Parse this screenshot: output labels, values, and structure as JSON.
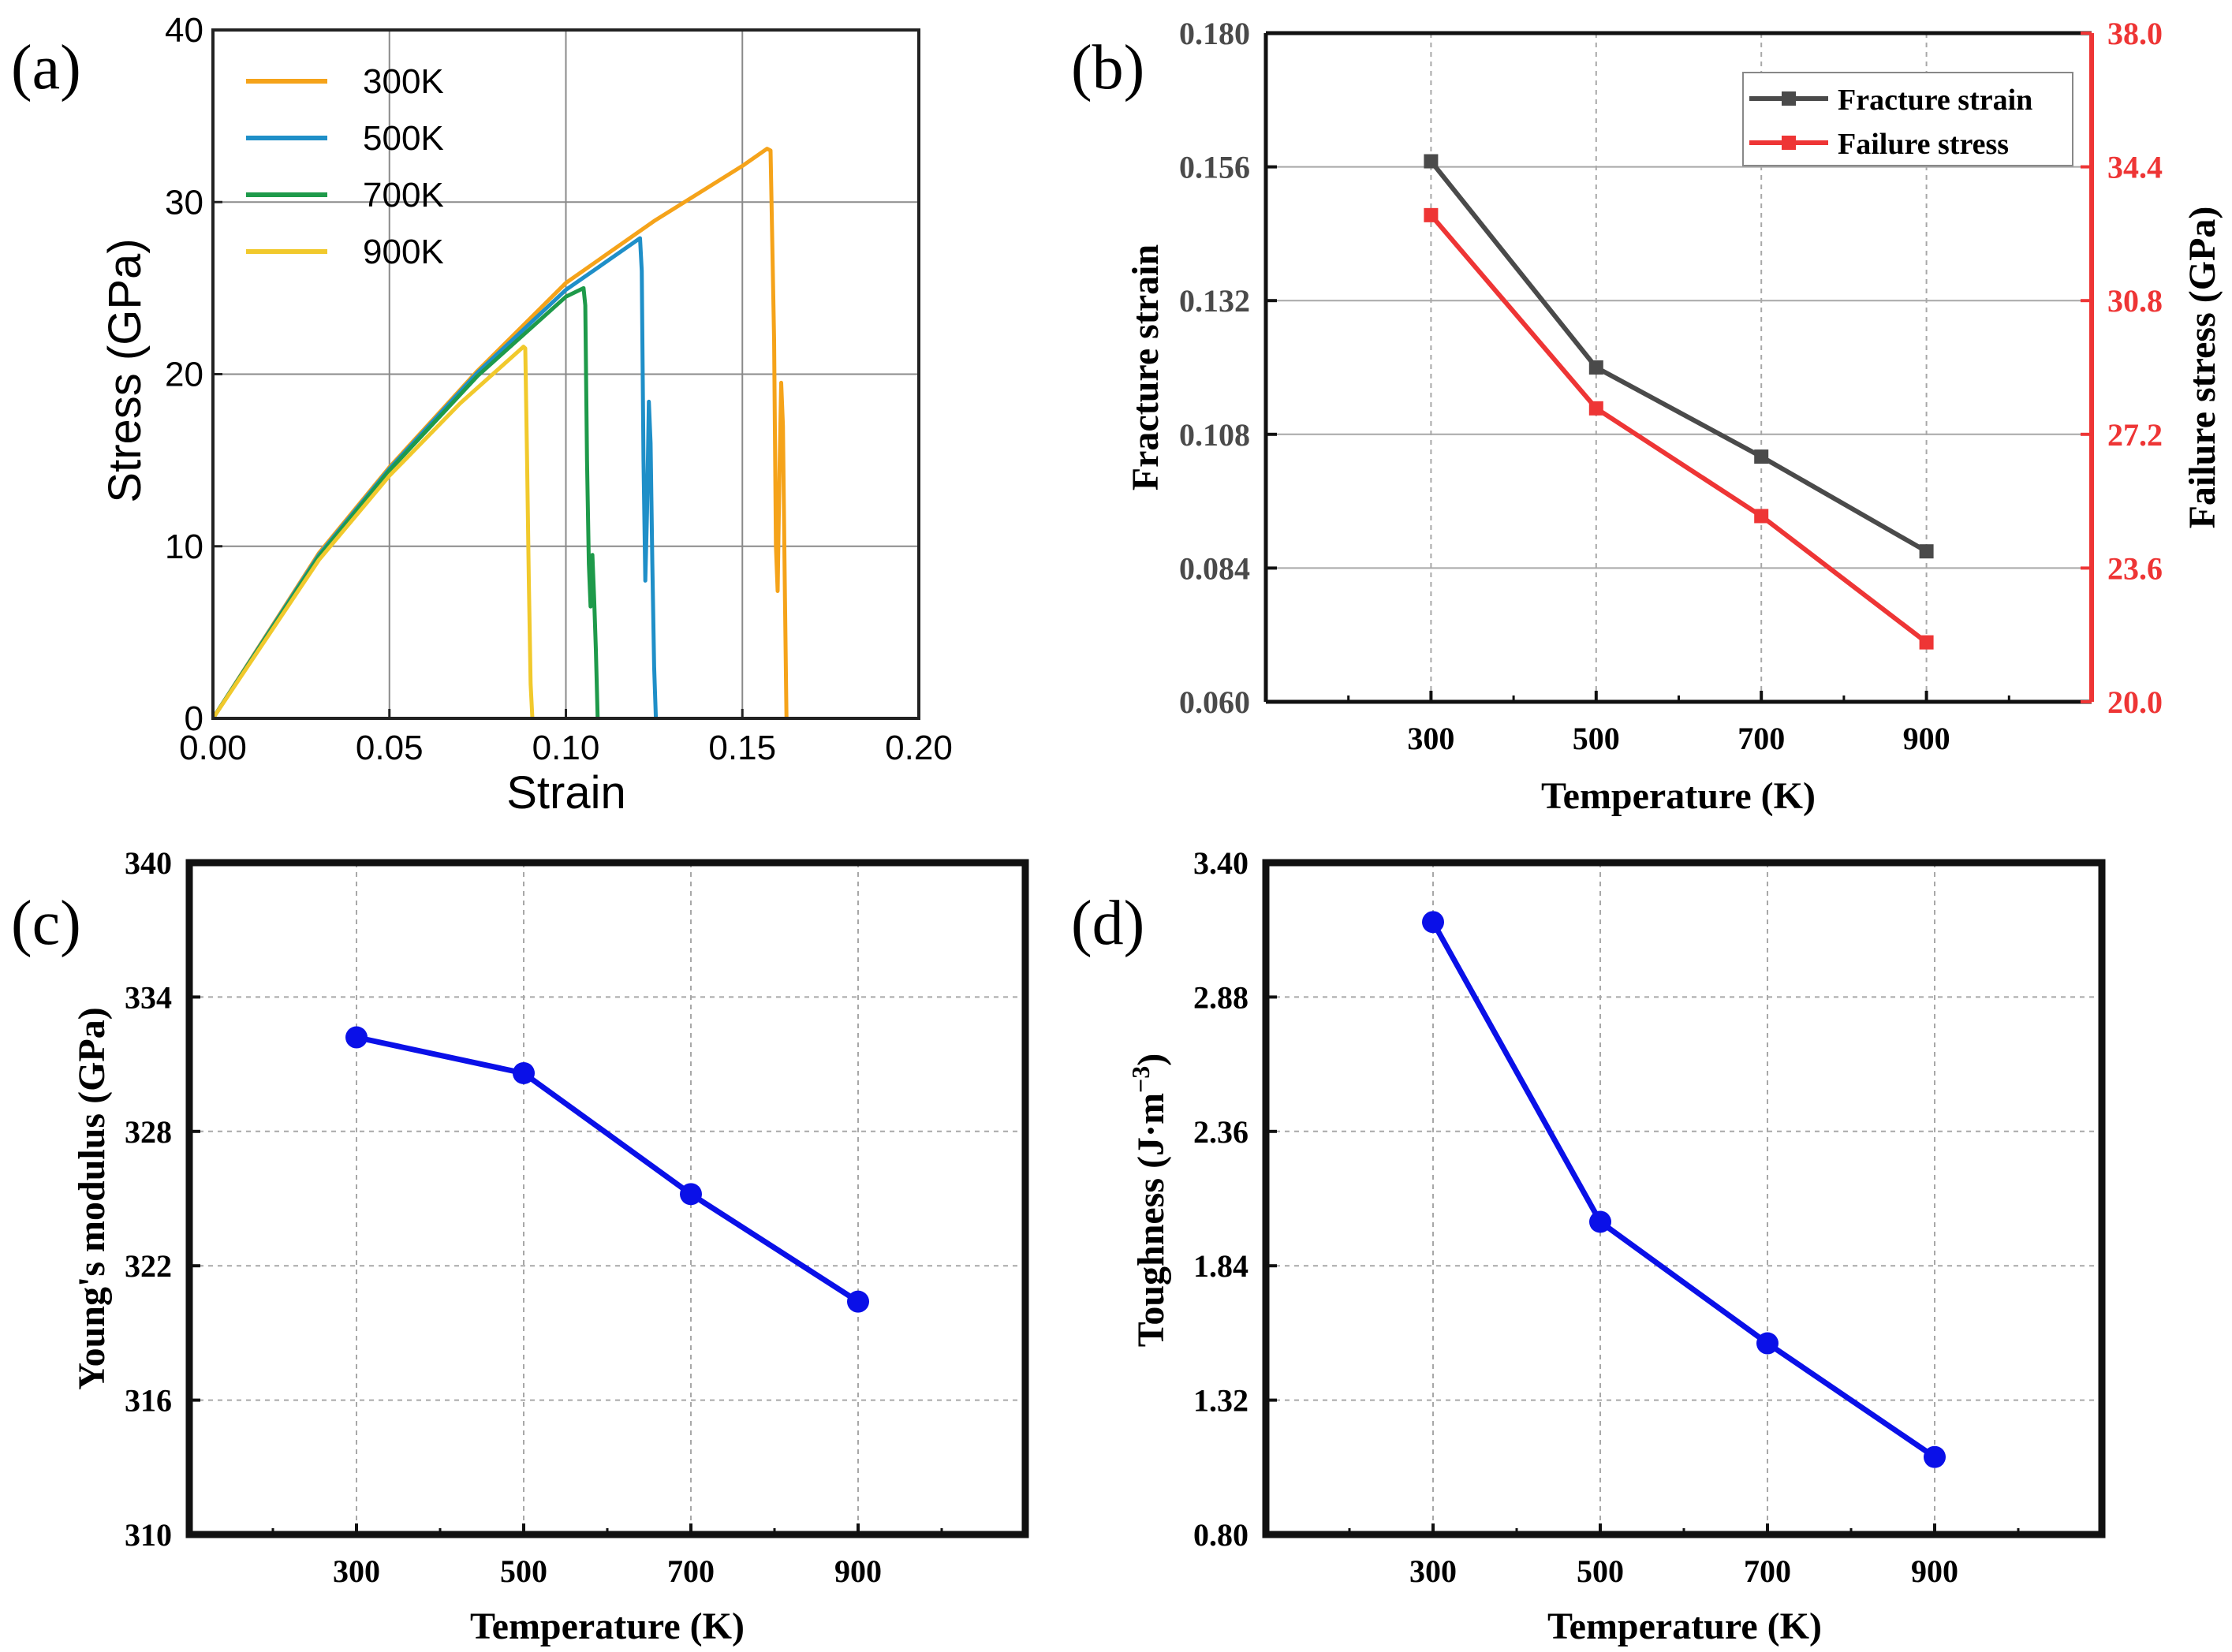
{
  "colors": {
    "c300": "#f5a31a",
    "c500": "#1f8fc8",
    "c700": "#1e9a4a",
    "c900": "#f1c92c",
    "fracture": "#4a4a4a",
    "failure": "#ee3535",
    "blue": "#0a10e8",
    "grid": "#9a9a9a"
  },
  "chart_data": [
    {
      "panel": "(a)",
      "type": "line",
      "xlabel": "Strain",
      "ylabel": "Stress (GPa)",
      "xlim": [
        0.0,
        0.2
      ],
      "ylim": [
        0,
        40
      ],
      "xticks": [
        "0.00",
        "0.05",
        "0.10",
        "0.15",
        "0.20"
      ],
      "yticks": [
        "0",
        "10",
        "20",
        "30",
        "40"
      ],
      "legend_position": "top-left",
      "series": [
        {
          "name": "300K",
          "color": "c300",
          "points": [
            [
              0,
              0
            ],
            [
              0.03,
              9.6
            ],
            [
              0.05,
              14.6
            ],
            [
              0.075,
              20.2
            ],
            [
              0.1,
              25.3
            ],
            [
              0.125,
              28.9
            ],
            [
              0.15,
              32.1
            ],
            [
              0.157,
              33.1
            ],
            [
              0.158,
              33.0
            ],
            [
              0.159,
              22
            ],
            [
              0.1595,
              10
            ],
            [
              0.16,
              7.4
            ],
            [
              0.1605,
              14
            ],
            [
              0.161,
              19.5
            ],
            [
              0.1615,
              17
            ],
            [
              0.162,
              8
            ],
            [
              0.1625,
              0
            ]
          ]
        },
        {
          "name": "500K",
          "color": "c500",
          "points": [
            [
              0,
              0
            ],
            [
              0.03,
              9.5
            ],
            [
              0.05,
              14.5
            ],
            [
              0.075,
              20.1
            ],
            [
              0.1,
              24.9
            ],
            [
              0.121,
              27.9
            ],
            [
              0.1215,
              26
            ],
            [
              0.122,
              15
            ],
            [
              0.1225,
              8
            ],
            [
              0.123,
              12
            ],
            [
              0.1235,
              18.4
            ],
            [
              0.124,
              16
            ],
            [
              0.1245,
              9
            ],
            [
              0.125,
              3
            ],
            [
              0.1255,
              0
            ]
          ]
        },
        {
          "name": "700K",
          "color": "c700",
          "points": [
            [
              0,
              0
            ],
            [
              0.03,
              9.4
            ],
            [
              0.05,
              14.4
            ],
            [
              0.075,
              19.9
            ],
            [
              0.1,
              24.5
            ],
            [
              0.105,
              25.0
            ],
            [
              0.1055,
              24
            ],
            [
              0.106,
              15
            ],
            [
              0.1065,
              9
            ],
            [
              0.107,
              6.5
            ],
            [
              0.1075,
              9.5
            ],
            [
              0.108,
              7
            ],
            [
              0.1085,
              4
            ],
            [
              0.109,
              0
            ]
          ]
        },
        {
          "name": "900K",
          "color": "c900",
          "points": [
            [
              0,
              0
            ],
            [
              0.03,
              9.2
            ],
            [
              0.05,
              14.1
            ],
            [
              0.07,
              18.3
            ],
            [
              0.088,
              21.6
            ],
            [
              0.0885,
              21.5
            ],
            [
              0.089,
              15
            ],
            [
              0.0895,
              8
            ],
            [
              0.09,
              2
            ],
            [
              0.0905,
              0
            ]
          ]
        }
      ]
    },
    {
      "panel": "(b)",
      "type": "line",
      "xlabel": "Temperature (K)",
      "ylabel": "Fracture strain",
      "y2label": "Failure stress (GPa)",
      "x": [
        300,
        500,
        700,
        900
      ],
      "xlim": [
        100,
        1100
      ],
      "ylim": [
        0.06,
        0.18
      ],
      "y2lim": [
        20.0,
        38.0
      ],
      "yticks": [
        "0.060",
        "0.084",
        "0.108",
        "0.132",
        "0.156",
        "0.180"
      ],
      "y2ticks": [
        "20.0",
        "23.6",
        "27.2",
        "30.8",
        "34.4",
        "38.0"
      ],
      "xticks": [
        "300",
        "500",
        "700",
        "900"
      ],
      "legend_position": "top-right",
      "series": [
        {
          "name": "Fracture strain",
          "axis": "left",
          "color": "fracture",
          "marker": "square",
          "values": [
            0.157,
            0.12,
            0.104,
            0.087
          ]
        },
        {
          "name": "Failure stress",
          "axis": "right",
          "color": "failure",
          "marker": "square",
          "values": [
            33.1,
            27.9,
            25.0,
            21.6
          ]
        }
      ]
    },
    {
      "panel": "(c)",
      "type": "line",
      "xlabel": "Temperature (K)",
      "ylabel": "Young's modulus (GPa)",
      "x": [
        300,
        500,
        700,
        900
      ],
      "xlim": [
        100,
        1100
      ],
      "ylim": [
        310,
        340
      ],
      "yticks": [
        "310",
        "316",
        "322",
        "328",
        "334",
        "340"
      ],
      "xticks": [
        "300",
        "500",
        "700",
        "900"
      ],
      "series": [
        {
          "name": "Young's modulus",
          "color": "blue",
          "marker": "circle",
          "values": [
            332.2,
            330.6,
            325.2,
            320.4
          ]
        }
      ]
    },
    {
      "panel": "(d)",
      "type": "line",
      "xlabel": "Temperature (K)",
      "ylabel": "Toughness (J·m",
      "ylabel_sup": "−3",
      "ylabel_tail": ")",
      "x": [
        300,
        500,
        700,
        900
      ],
      "xlim": [
        100,
        1100
      ],
      "ylim": [
        0.8,
        3.4
      ],
      "yticks": [
        "0.80",
        "1.32",
        "1.84",
        "2.36",
        "2.88",
        "3.40"
      ],
      "xticks": [
        "300",
        "500",
        "700",
        "900"
      ],
      "series": [
        {
          "name": "Toughness",
          "color": "blue",
          "marker": "circle",
          "values": [
            3.17,
            2.01,
            1.54,
            1.1
          ]
        }
      ]
    }
  ]
}
